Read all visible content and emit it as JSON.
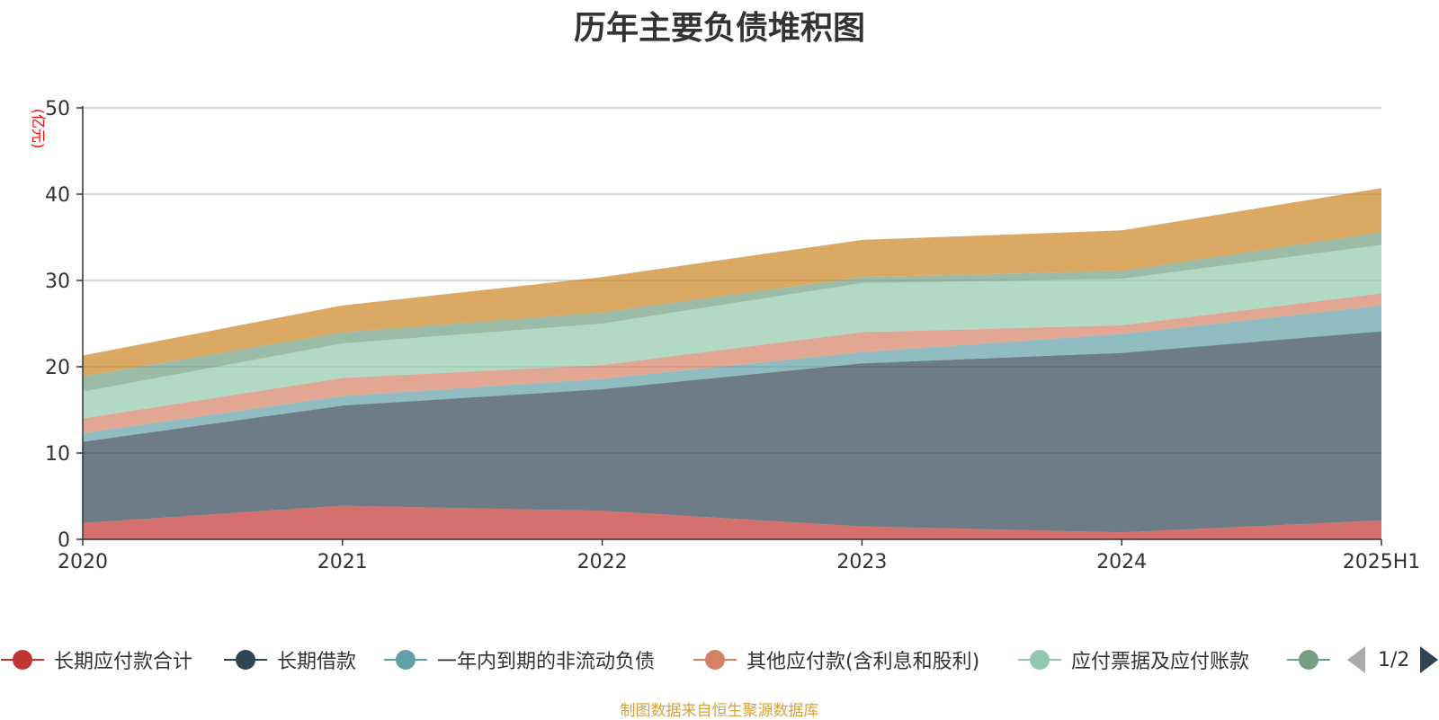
{
  "chart_data": {
    "type": "area",
    "stacked": true,
    "title": "历年主要负债堆积图",
    "unit_label": "(亿元)",
    "x": [
      "2020",
      "2021",
      "2022",
      "2023",
      "2024",
      "2025H1"
    ],
    "ylim": [
      0,
      50
    ],
    "y_ticks": [
      0,
      10,
      20,
      30,
      40,
      50
    ],
    "grid": true,
    "legend_position": "bottom",
    "series": [
      {
        "name": "长期应付款合计",
        "color": "#c23531",
        "values": [
          1.9,
          3.9,
          3.3,
          1.5,
          0.8,
          2.2
        ]
      },
      {
        "name": "长期借款",
        "color": "#2f4554",
        "values": [
          9.4,
          11.6,
          14.1,
          18.9,
          20.8,
          21.9
        ]
      },
      {
        "name": "一年内到期的非流动负债",
        "color": "#61a0a8",
        "values": [
          1.0,
          1.1,
          1.2,
          1.3,
          2.2,
          3.0
        ]
      },
      {
        "name": "其他应付款(含利息和股利)",
        "color": "#d48265",
        "values": [
          1.7,
          2.1,
          1.6,
          2.3,
          1.0,
          1.4
        ]
      },
      {
        "name": "应付票据及应付账款",
        "color": "#91c7ae",
        "values": [
          3.1,
          4.0,
          4.8,
          5.7,
          5.4,
          5.6
        ]
      },
      {
        "name": "",
        "color": "#749f83",
        "values": [
          1.8,
          1.3,
          1.3,
          0.7,
          0.9,
          1.5
        ]
      },
      {
        "name": "",
        "color": "#ca8622",
        "values": [
          2.4,
          3.1,
          4.1,
          4.3,
          4.7,
          5.1
        ]
      }
    ]
  },
  "legend": {
    "page_indicator": "1/2"
  },
  "source_note": "制图数据来自恒生聚源数据库"
}
